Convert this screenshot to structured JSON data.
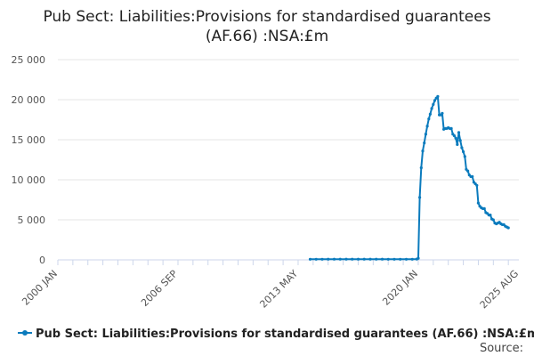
{
  "title_line1": "Pub Sect: Liabilities:Provisions for standardised guarantees",
  "title_line2": "(AF.66) :NSA:£m",
  "source_label": "Source:",
  "colors": {
    "series": "#0b7bbd",
    "grid": "#e6e6e6",
    "axis": "#ccd6eb"
  },
  "chart_data": {
    "type": "line",
    "ylim": [
      0,
      25000
    ],
    "yticks": [
      {
        "value": 0,
        "label": "0"
      },
      {
        "value": 5000,
        "label": "5 000"
      },
      {
        "value": 10000,
        "label": "10 000"
      },
      {
        "value": 15000,
        "label": "15 000"
      },
      {
        "value": 20000,
        "label": "20 000"
      },
      {
        "value": 25000,
        "label": "25 000"
      }
    ],
    "xlim": [
      "2000-01",
      "2025-08"
    ],
    "xticks": [
      {
        "value": "2000-01",
        "label": "2000 JAN"
      },
      {
        "value": "2006-09",
        "label": "2006 SEP"
      },
      {
        "value": "2013-05",
        "label": "2013 MAY"
      },
      {
        "value": "2020-01",
        "label": "2020 JAN"
      },
      {
        "value": "2025-08",
        "label": "2025 AUG"
      }
    ],
    "grid": true,
    "legend_position": "bottom",
    "series": [
      {
        "name": "Pub Sect: Liabilities:Provisions for standardised guarantees (AF.66) :NSA:£m",
        "points": [
          [
            "2014-01",
            80
          ],
          [
            "2014-05",
            80
          ],
          [
            "2014-09",
            80
          ],
          [
            "2015-01",
            90
          ],
          [
            "2015-05",
            90
          ],
          [
            "2015-09",
            90
          ],
          [
            "2016-01",
            90
          ],
          [
            "2016-05",
            90
          ],
          [
            "2016-09",
            90
          ],
          [
            "2017-01",
            90
          ],
          [
            "2017-05",
            90
          ],
          [
            "2017-09",
            90
          ],
          [
            "2018-01",
            90
          ],
          [
            "2018-05",
            80
          ],
          [
            "2018-09",
            80
          ],
          [
            "2019-01",
            80
          ],
          [
            "2019-05",
            80
          ],
          [
            "2019-09",
            80
          ],
          [
            "2019-12",
            100
          ],
          [
            "2020-01",
            200
          ],
          [
            "2020-02",
            7800
          ],
          [
            "2020-03",
            11500
          ],
          [
            "2020-04",
            13600
          ],
          [
            "2020-05",
            14600
          ],
          [
            "2020-06",
            15700
          ],
          [
            "2020-07",
            16700
          ],
          [
            "2020-08",
            17600
          ],
          [
            "2020-09",
            18200
          ],
          [
            "2020-10",
            18900
          ],
          [
            "2020-11",
            19400
          ],
          [
            "2020-12",
            19900
          ],
          [
            "2021-01",
            20200
          ],
          [
            "2021-02",
            20400
          ],
          [
            "2021-03",
            18100
          ],
          [
            "2021-04",
            18100
          ],
          [
            "2021-05",
            18300
          ],
          [
            "2021-06",
            16300
          ],
          [
            "2021-07",
            16400
          ],
          [
            "2021-08",
            16400
          ],
          [
            "2021-09",
            16500
          ],
          [
            "2021-10",
            16400
          ],
          [
            "2021-11",
            16400
          ],
          [
            "2021-12",
            15700
          ],
          [
            "2022-01",
            15500
          ],
          [
            "2022-02",
            15200
          ],
          [
            "2022-03",
            14400
          ],
          [
            "2022-04",
            15900
          ],
          [
            "2022-05",
            14900
          ],
          [
            "2022-06",
            14000
          ],
          [
            "2022-07",
            13500
          ],
          [
            "2022-08",
            12900
          ],
          [
            "2022-09",
            11300
          ],
          [
            "2022-10",
            11100
          ],
          [
            "2022-11",
            10600
          ],
          [
            "2022-12",
            10400
          ],
          [
            "2023-01",
            10400
          ],
          [
            "2023-02",
            9700
          ],
          [
            "2023-03",
            9500
          ],
          [
            "2023-04",
            9300
          ],
          [
            "2023-05",
            7100
          ],
          [
            "2023-06",
            6700
          ],
          [
            "2023-07",
            6500
          ],
          [
            "2023-08",
            6400
          ],
          [
            "2023-09",
            6400
          ],
          [
            "2023-10",
            5900
          ],
          [
            "2023-11",
            5800
          ],
          [
            "2023-12",
            5600
          ],
          [
            "2024-01",
            5600
          ],
          [
            "2024-02",
            5100
          ],
          [
            "2024-03",
            5000
          ],
          [
            "2024-04",
            4600
          ],
          [
            "2024-05",
            4500
          ],
          [
            "2024-06",
            4600
          ],
          [
            "2024-07",
            4700
          ],
          [
            "2024-08",
            4500
          ],
          [
            "2024-09",
            4400
          ],
          [
            "2024-10",
            4400
          ],
          [
            "2024-11",
            4200
          ],
          [
            "2024-12",
            4100
          ],
          [
            "2025-01",
            4000
          ]
        ]
      }
    ]
  }
}
